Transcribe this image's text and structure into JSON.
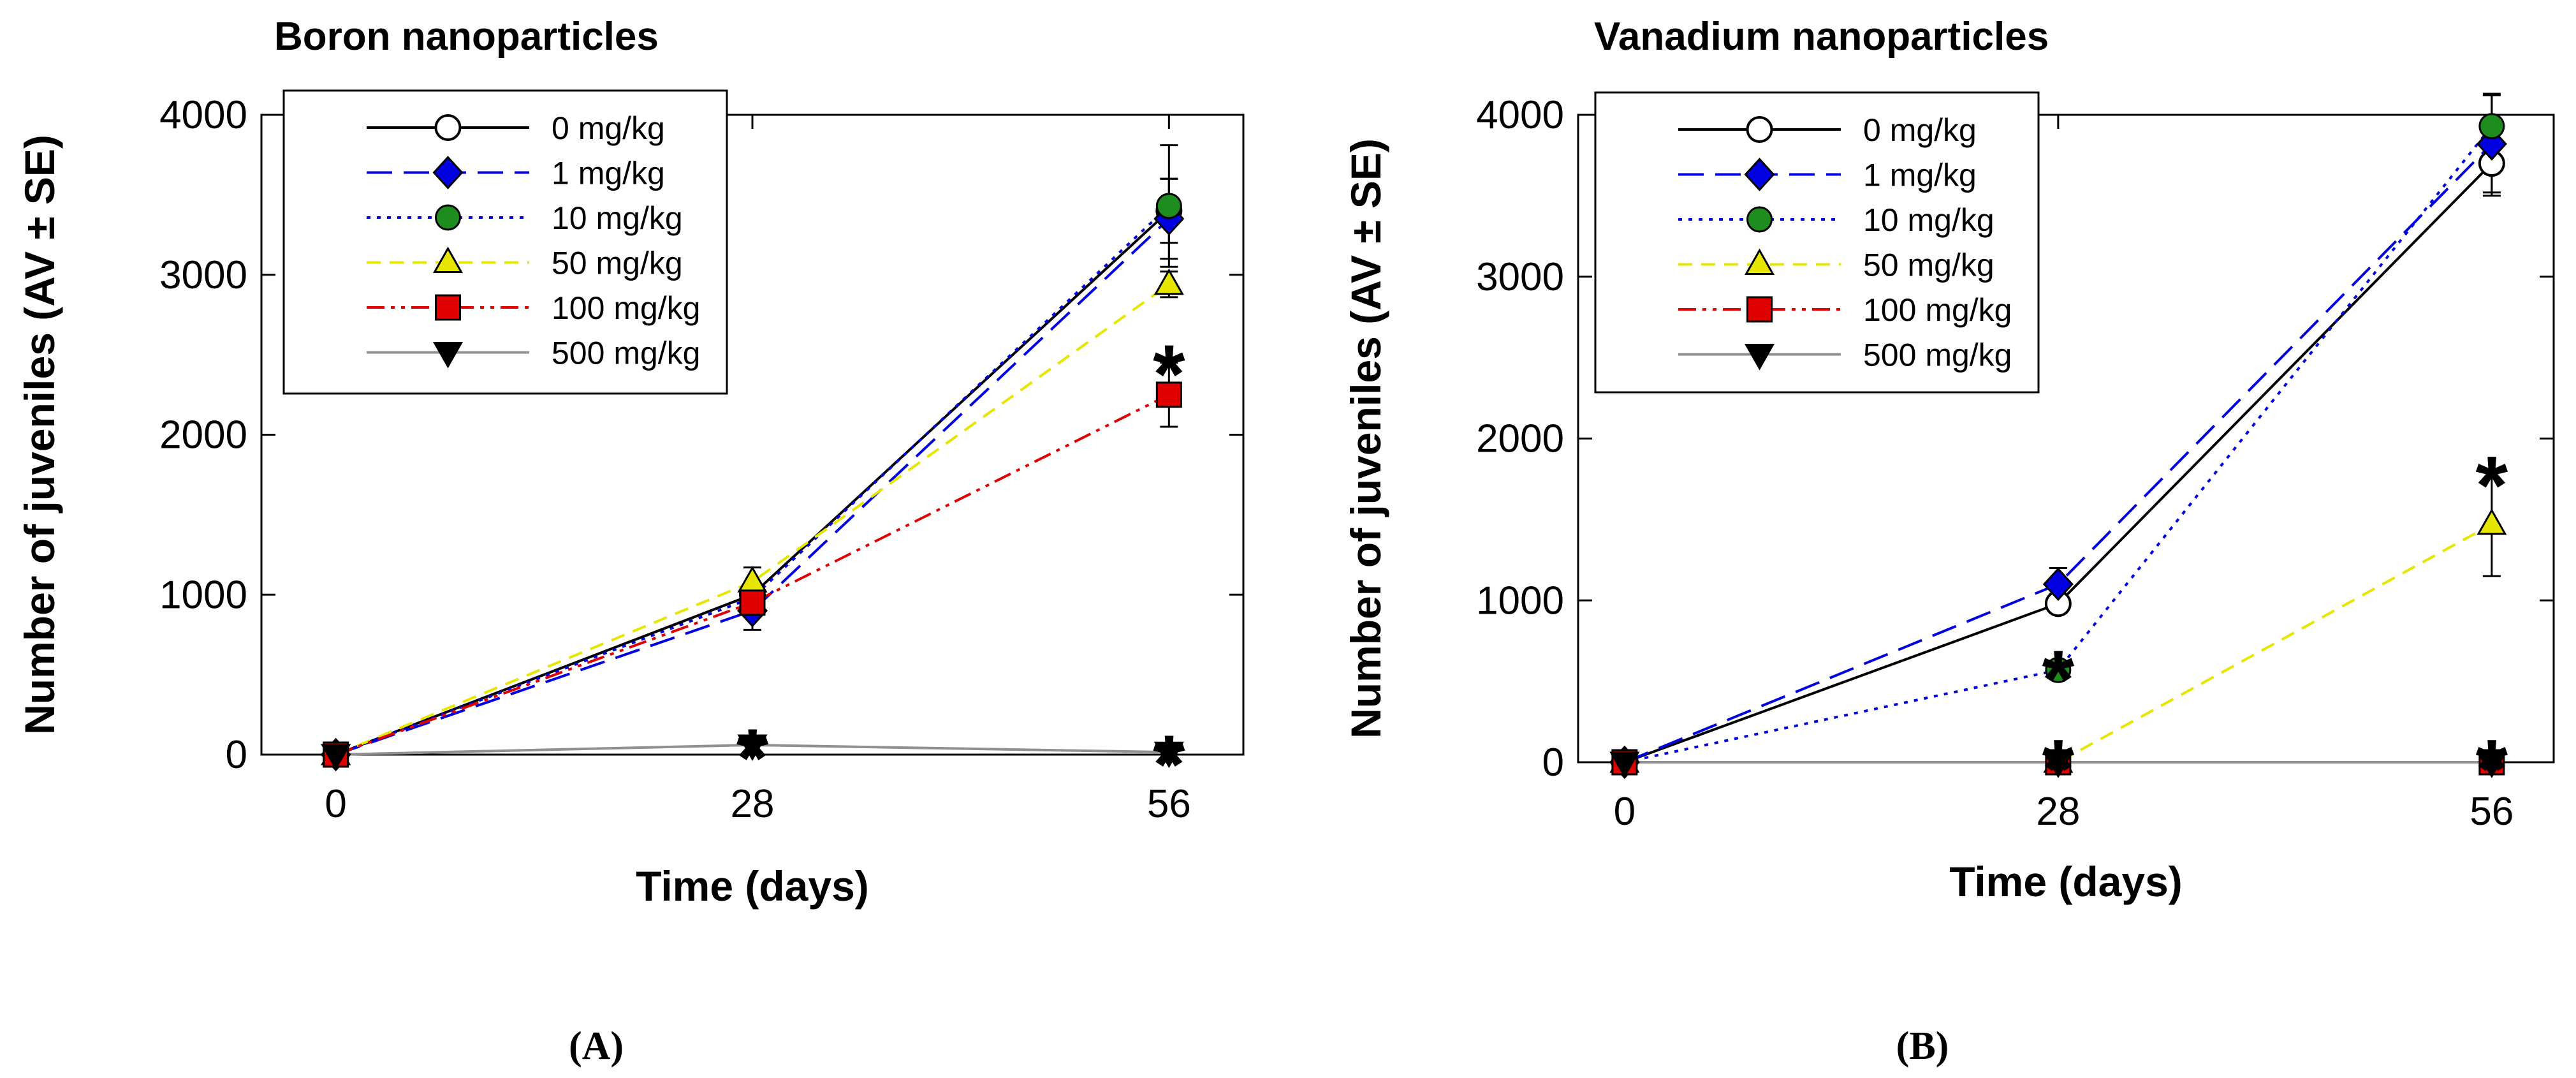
{
  "chart_data": [
    {
      "type": "line",
      "title": "Boron nanoparticles",
      "panel_label": "(A)",
      "xlabel": "Time (days)",
      "ylabel": "Number of juveniles (AV ± SE)",
      "x": [
        0,
        28,
        56
      ],
      "xticks": [
        "0",
        "28",
        "56"
      ],
      "yticks": [
        "0",
        "1000",
        "2000",
        "3000",
        "4000"
      ],
      "xlim": [
        -5,
        61
      ],
      "ylim": [
        0,
        4000
      ],
      "legend_position": "top-left",
      "series": [
        {
          "name": "0  mg/kg",
          "color": "#000000",
          "dash": "solid",
          "marker": "circle-open",
          "values": [
            0,
            1000,
            3400
          ],
          "err": [
            0,
            60,
            200
          ]
        },
        {
          "name": "1 mg/kg",
          "color": "#0000e0",
          "dash": "longdash",
          "marker": "diamond",
          "values": [
            0,
            900,
            3350
          ],
          "err": [
            0,
            120,
            250
          ]
        },
        {
          "name": "10 mg/kg",
          "color": "#0000e0",
          "dash": "dot",
          "marker": "circle",
          "fill": "#1e8c1e",
          "values": [
            0,
            980,
            3430
          ],
          "err": [
            0,
            80,
            380
          ]
        },
        {
          "name": "50 mg/kg",
          "color": "#e6e600",
          "dash": "dash",
          "marker": "triangle-up",
          "values": [
            0,
            1080,
            2940
          ],
          "err": [
            0,
            90,
            80
          ]
        },
        {
          "name": "100 mg/kg",
          "color": "#e00000",
          "dash": "dashdotdot",
          "marker": "square",
          "values": [
            0,
            950,
            2250
          ],
          "err": [
            0,
            60,
            200
          ]
        },
        {
          "name": "500 mg/kg",
          "color": "#909090",
          "dash": "solid",
          "marker": "triangle-down",
          "fill": "#000000",
          "values": [
            0,
            60,
            15
          ],
          "err": [
            0,
            0,
            0
          ]
        }
      ],
      "annotations": [
        {
          "text": "*",
          "x": 56,
          "y": 2500
        },
        {
          "text": "*",
          "x": 28,
          "y": 100
        },
        {
          "text": "*",
          "x": 56,
          "y": 60
        }
      ]
    },
    {
      "type": "line",
      "title": "Vanadium nanoparticles",
      "panel_label": "(B)",
      "xlabel": "Time (days)",
      "ylabel": "Number of juveniles (AV ± SE)",
      "x": [
        0,
        28,
        56
      ],
      "xticks": [
        "0",
        "28",
        "56"
      ],
      "yticks": [
        "0",
        "1000",
        "2000",
        "3000",
        "4000"
      ],
      "xlim": [
        -3,
        60
      ],
      "ylim": [
        0,
        4000
      ],
      "legend_position": "top-left",
      "series": [
        {
          "name": "0  mg/kg",
          "color": "#000000",
          "dash": "solid",
          "marker": "circle-open",
          "values": [
            0,
            980,
            3700
          ],
          "err": [
            0,
            60,
            200
          ]
        },
        {
          "name": "1 mg/kg",
          "color": "#0000e0",
          "dash": "longdash",
          "marker": "diamond",
          "values": [
            0,
            1100,
            3820
          ],
          "err": [
            0,
            100,
            300
          ]
        },
        {
          "name": "10 mg/kg",
          "color": "#0000e0",
          "dash": "dot",
          "marker": "circle",
          "fill": "#1e8c1e",
          "values": [
            0,
            570,
            3930
          ],
          "err": [
            0,
            50,
            200
          ]
        },
        {
          "name": "50 mg/kg",
          "color": "#e6e600",
          "dash": "dash",
          "marker": "triangle-up",
          "values": [
            0,
            0,
            1470
          ],
          "err": [
            0,
            0,
            320
          ]
        },
        {
          "name": "100 mg/kg",
          "color": "#e00000",
          "dash": "dashdotdot",
          "marker": "square",
          "values": [
            0,
            0,
            0
          ],
          "err": [
            0,
            0,
            0
          ]
        },
        {
          "name": "500 mg/kg",
          "color": "#909090",
          "dash": "solid",
          "marker": "triangle-down",
          "fill": "#000000",
          "values": [
            0,
            0,
            0
          ],
          "err": [
            0,
            0,
            0
          ]
        }
      ],
      "annotations": [
        {
          "text": "*",
          "x": 28,
          "y": 630
        },
        {
          "text": "*",
          "x": 28,
          "y": 80
        },
        {
          "text": "*",
          "x": 56,
          "y": 1830
        },
        {
          "text": "*",
          "x": 56,
          "y": 80
        }
      ]
    }
  ]
}
